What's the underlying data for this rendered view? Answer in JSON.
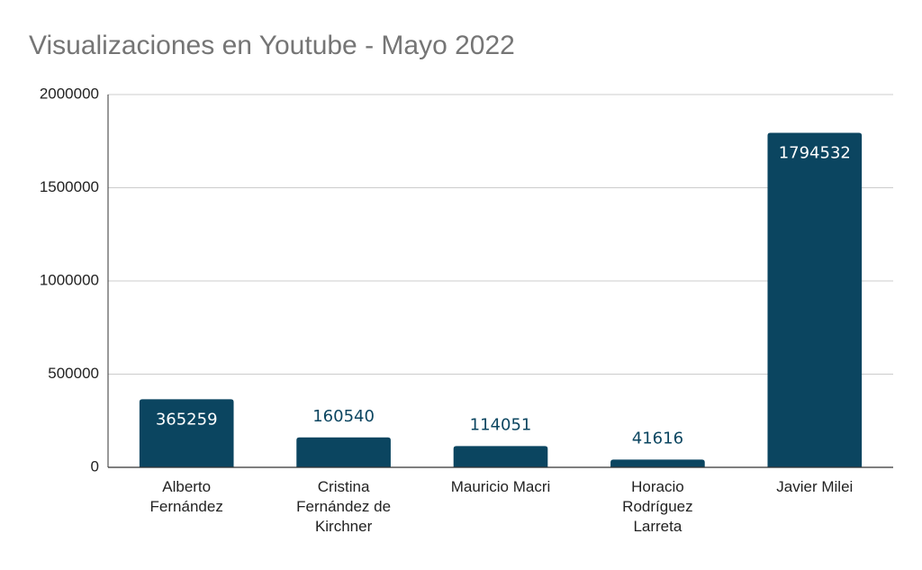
{
  "chart_data": {
    "type": "bar",
    "title": "Visualizaciones en Youtube - Mayo 2022",
    "categories": [
      "Alberto Fernández",
      "Cristina Fernández de Kirchner",
      "Mauricio Macri",
      "Horacio Rodríguez Larreta",
      "Javier Milei"
    ],
    "values": [
      365259,
      160540,
      114051,
      41616,
      1794532
    ],
    "color": "#0b4560",
    "ylim": [
      0,
      2000000
    ],
    "yticks": [
      0,
      500000,
      1000000,
      1500000,
      2000000
    ],
    "grid": true
  }
}
